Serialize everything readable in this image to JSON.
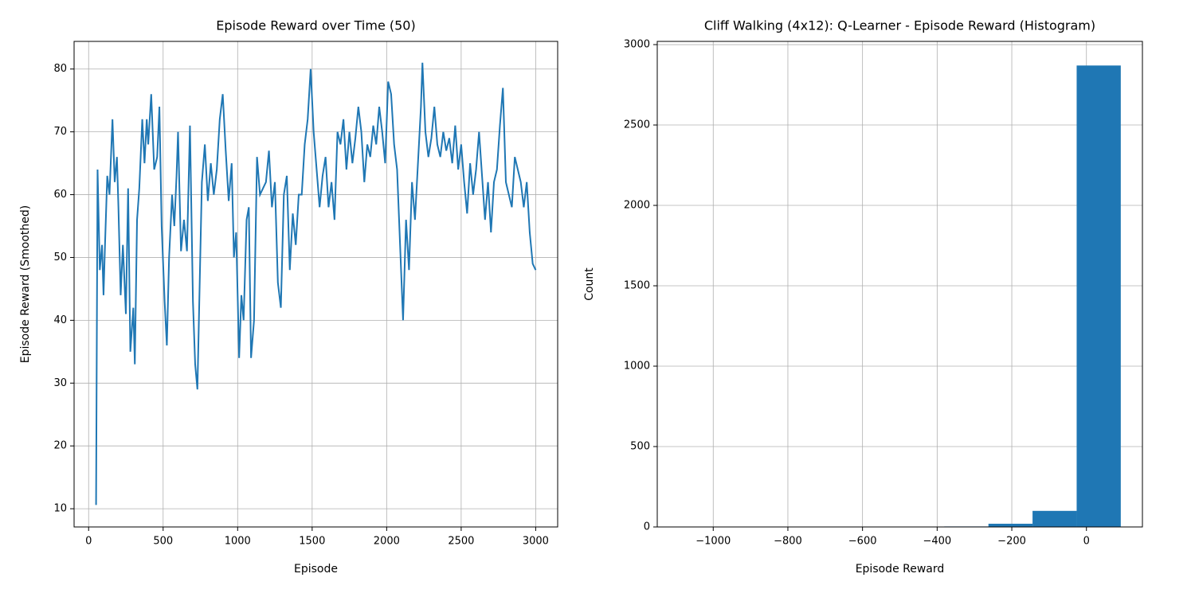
{
  "chart_data": [
    {
      "type": "line",
      "title": "Episode Reward over Time (50)",
      "xlabel": "Episode",
      "ylabel": "Episode Reward (Smoothed)",
      "x": [
        50,
        60,
        75,
        90,
        100,
        110,
        125,
        140,
        160,
        175,
        190,
        200,
        215,
        230,
        250,
        265,
        280,
        300,
        310,
        325,
        340,
        360,
        375,
        390,
        400,
        420,
        440,
        460,
        475,
        490,
        510,
        525,
        540,
        560,
        575,
        590,
        600,
        620,
        640,
        660,
        680,
        700,
        715,
        730,
        740,
        760,
        780,
        800,
        820,
        840,
        860,
        880,
        900,
        920,
        940,
        960,
        975,
        990,
        1010,
        1025,
        1040,
        1060,
        1075,
        1090,
        1110,
        1130,
        1150,
        1170,
        1190,
        1210,
        1230,
        1250,
        1270,
        1290,
        1310,
        1330,
        1350,
        1370,
        1390,
        1410,
        1430,
        1450,
        1470,
        1490,
        1510,
        1530,
        1550,
        1570,
        1590,
        1610,
        1630,
        1650,
        1670,
        1690,
        1710,
        1730,
        1750,
        1770,
        1790,
        1810,
        1830,
        1850,
        1870,
        1890,
        1910,
        1930,
        1950,
        1970,
        1990,
        2010,
        2030,
        2050,
        2070,
        2090,
        2110,
        2130,
        2150,
        2170,
        2190,
        2210,
        2230,
        2240,
        2260,
        2280,
        2300,
        2320,
        2340,
        2360,
        2380,
        2400,
        2420,
        2440,
        2460,
        2480,
        2500,
        2520,
        2540,
        2560,
        2580,
        2600,
        2620,
        2640,
        2660,
        2680,
        2700,
        2720,
        2740,
        2760,
        2780,
        2800,
        2820,
        2840,
        2860,
        2880,
        2900,
        2920,
        2940,
        2960,
        2980,
        3000
      ],
      "values": [
        10.6,
        64,
        48,
        52,
        44,
        52,
        63,
        60,
        72,
        62,
        66,
        58,
        44,
        52,
        41,
        61,
        35,
        42,
        33,
        56,
        61,
        72,
        65,
        72,
        68,
        76,
        64,
        66,
        74,
        55,
        43,
        36,
        50,
        60,
        55,
        63,
        70,
        51,
        56,
        51,
        71,
        43,
        33,
        29,
        40,
        62,
        68,
        59,
        65,
        60,
        64,
        72,
        76,
        67,
        59,
        65,
        50,
        54,
        34,
        44,
        40,
        56,
        58,
        34,
        40,
        66,
        60,
        61,
        62,
        67,
        58,
        62,
        46,
        42,
        60,
        63,
        48,
        57,
        52,
        60,
        60,
        68,
        72,
        80,
        70,
        64,
        58,
        63,
        66,
        58,
        62,
        56,
        70,
        68,
        72,
        64,
        70,
        65,
        69,
        74,
        70,
        62,
        68,
        66,
        71,
        68,
        74,
        70,
        65,
        78,
        76,
        68,
        64,
        52,
        40,
        56,
        48,
        62,
        56,
        65,
        74,
        81,
        70,
        66,
        69,
        74,
        68,
        66,
        70,
        67,
        69,
        65,
        71,
        64,
        68,
        62,
        57,
        65,
        60,
        64,
        70,
        63,
        56,
        62,
        54,
        62,
        64,
        71,
        77,
        62,
        60,
        58,
        66,
        64,
        62,
        58,
        62,
        54,
        49,
        48
      ],
      "color": "#1f77b4",
      "xlim": [
        -97.5,
        3147.5
      ],
      "xticks": [
        0,
        500,
        1000,
        1500,
        2000,
        2500,
        3000
      ],
      "ylim": [
        7.1,
        84.4
      ],
      "yticks": [
        10,
        20,
        30,
        40,
        50,
        60,
        70,
        80
      ],
      "grid": true
    },
    {
      "type": "histogram",
      "title": "Cliff Walking (4x12): Q-Learner - Episode Reward (Histogram)",
      "xlabel": "Episode Reward",
      "ylabel": "Count",
      "bins": [
        -1090,
        -971.8,
        -853.6,
        -735.4,
        -617.2,
        -499,
        -380.8,
        -262.6,
        -144.4,
        -26.2,
        92
      ],
      "values": [
        2,
        0,
        0,
        1,
        0,
        2,
        3,
        20,
        100,
        2870
      ],
      "color": "#1f77b4",
      "xlim": [
        -1150,
        150
      ],
      "xticks": [
        {
          "value": -1000,
          "label": "−1000"
        },
        {
          "value": -800,
          "label": "−800"
        },
        {
          "value": -600,
          "label": "−600"
        },
        {
          "value": -400,
          "label": "−400"
        },
        {
          "value": -200,
          "label": "−200"
        },
        0
      ],
      "ylim": [
        0,
        3020
      ],
      "yticks": [
        0,
        500,
        1000,
        1500,
        2000,
        2500,
        3000
      ],
      "grid": true
    }
  ]
}
